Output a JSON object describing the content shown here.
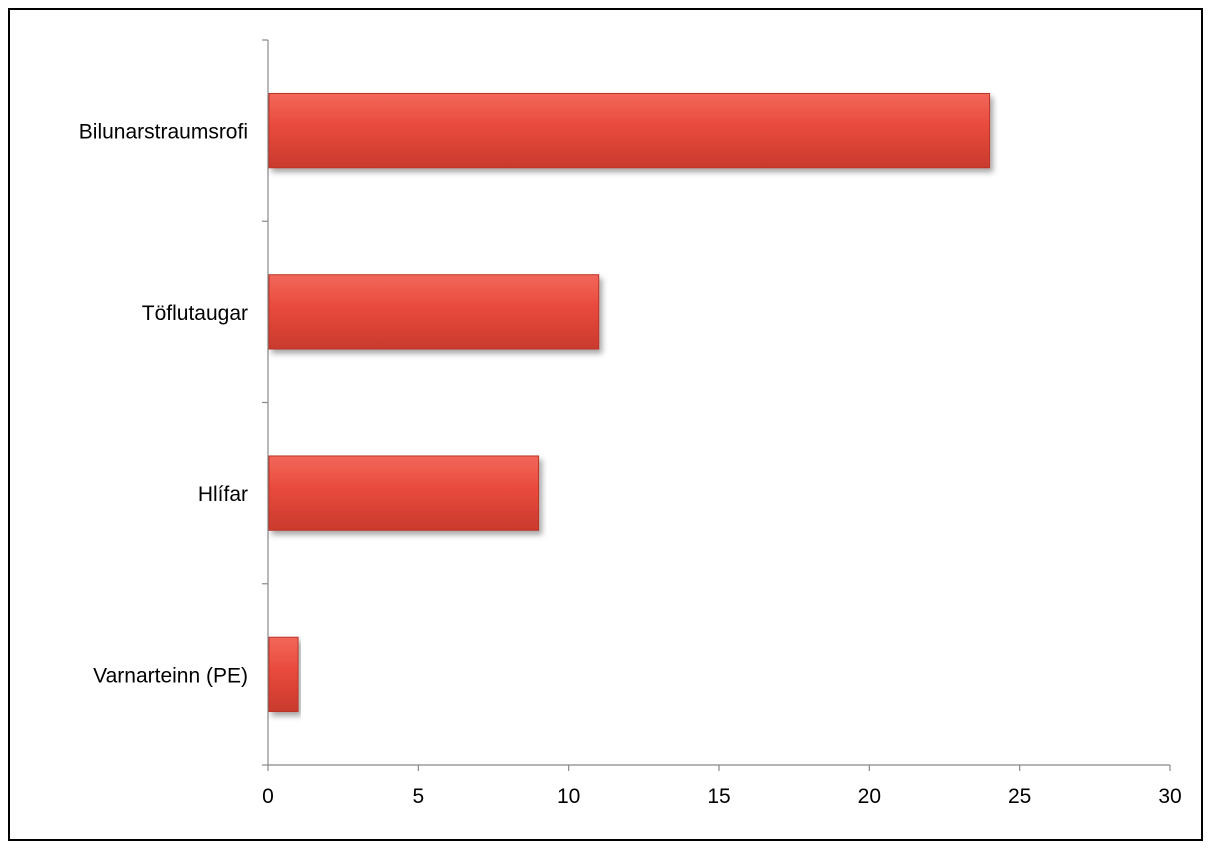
{
  "chart_data": {
    "type": "bar",
    "orientation": "horizontal",
    "title": "",
    "xlabel": "",
    "ylabel": "",
    "categories": [
      "Bilunarstraumsrofi",
      "Töflutaugar",
      "Hlífar",
      "Varnarteinn (PE)"
    ],
    "values": [
      24,
      11,
      9,
      1
    ],
    "xlim": [
      0,
      30
    ],
    "xticks": [
      "0",
      "5",
      "10",
      "15",
      "20",
      "25",
      "30"
    ],
    "grid": false,
    "legend": "none",
    "colors": {
      "bar": "#e84a3c",
      "bar_dark": "#b8352a",
      "axis": "#888888"
    }
  }
}
